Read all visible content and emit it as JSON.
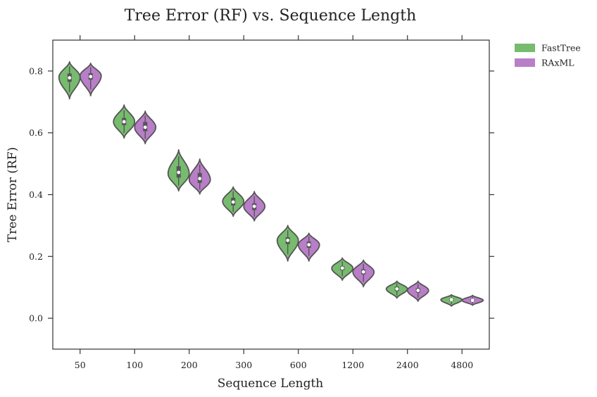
{
  "chart_data": {
    "type": "violin",
    "title": "Tree Error (RF) vs. Sequence Length",
    "xlabel": "Sequence Length",
    "ylabel": "Tree Error (RF)",
    "categories": [
      "50",
      "100",
      "200",
      "300",
      "600",
      "1200",
      "2400",
      "4800"
    ],
    "ylim": [
      -0.1,
      0.9
    ],
    "yticks": [
      0.0,
      0.2,
      0.4,
      0.6,
      0.8
    ],
    "ytick_labels": [
      "0.0",
      "0.2",
      "0.4",
      "0.6",
      "0.8"
    ],
    "grid": false,
    "legend_position": "outside-top-right",
    "series": [
      {
        "name": "FastTree",
        "color": "#77bb6f",
        "median": [
          0.778,
          0.636,
          0.472,
          0.376,
          0.252,
          0.162,
          0.095,
          0.06
        ],
        "q1": [
          0.765,
          0.625,
          0.455,
          0.365,
          0.24,
          0.155,
          0.088,
          0.056
        ],
        "q3": [
          0.792,
          0.648,
          0.492,
          0.39,
          0.262,
          0.168,
          0.102,
          0.064
        ],
        "min": [
          0.71,
          0.583,
          0.412,
          0.33,
          0.185,
          0.123,
          0.065,
          0.039
        ],
        "max": [
          0.83,
          0.69,
          0.545,
          0.425,
          0.3,
          0.195,
          0.12,
          0.076
        ],
        "mode": [
          0.78,
          0.636,
          0.468,
          0.378,
          0.252,
          0.162,
          0.095,
          0.06
        ]
      },
      {
        "name": "RAxML",
        "color": "#b97ec8",
        "median": [
          0.782,
          0.618,
          0.452,
          0.362,
          0.238,
          0.15,
          0.09,
          0.058
        ],
        "q1": [
          0.772,
          0.605,
          0.438,
          0.35,
          0.228,
          0.142,
          0.083,
          0.054
        ],
        "q3": [
          0.793,
          0.635,
          0.47,
          0.372,
          0.248,
          0.158,
          0.097,
          0.062
        ],
        "min": [
          0.72,
          0.565,
          0.402,
          0.315,
          0.185,
          0.102,
          0.055,
          0.042
        ],
        "max": [
          0.825,
          0.67,
          0.515,
          0.41,
          0.275,
          0.188,
          0.12,
          0.074
        ],
        "mode": [
          0.785,
          0.618,
          0.448,
          0.362,
          0.238,
          0.15,
          0.09,
          0.058
        ]
      }
    ],
    "legend": [
      {
        "name": "FastTree",
        "color": "#77bb6f"
      },
      {
        "name": "RAxML",
        "color": "#b97ec8"
      }
    ]
  }
}
